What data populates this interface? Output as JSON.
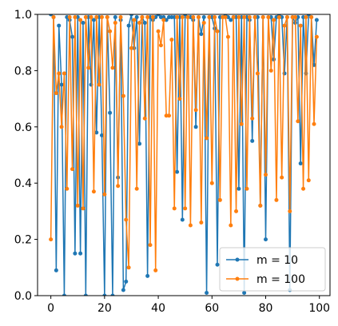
{
  "chart_data": {
    "type": "line",
    "x": [
      0,
      1,
      2,
      3,
      4,
      5,
      6,
      7,
      8,
      9,
      10,
      11,
      12,
      13,
      14,
      15,
      16,
      17,
      18,
      19,
      20,
      21,
      22,
      23,
      24,
      25,
      26,
      27,
      28,
      29,
      30,
      31,
      32,
      33,
      34,
      35,
      36,
      37,
      38,
      39,
      40,
      41,
      42,
      43,
      44,
      45,
      46,
      47,
      48,
      49,
      50,
      51,
      52,
      53,
      54,
      55,
      56,
      57,
      58,
      59,
      60,
      61,
      62,
      63,
      64,
      65,
      66,
      67,
      68,
      69,
      70,
      71,
      72,
      73,
      74,
      75,
      76,
      77,
      78,
      79,
      80,
      81,
      82,
      83,
      84,
      85,
      86,
      87,
      88,
      89,
      90,
      91,
      92,
      93,
      94,
      95,
      96,
      97,
      98,
      99
    ],
    "series": [
      {
        "name": "m = 10",
        "color": "#1f77b4",
        "values": [
          1.0,
          0.99,
          0.09,
          0.96,
          0.75,
          0.0,
          0.99,
          0.98,
          0.92,
          0.15,
          0.99,
          0.15,
          0.97,
          0.0,
          0.99,
          0.75,
          0.98,
          0.58,
          0.99,
          0.57,
          0.0,
          0.99,
          0.65,
          0.0,
          0.99,
          0.42,
          0.98,
          0.02,
          0.05,
          0.96,
          1.0,
          0.88,
          0.99,
          0.54,
          0.99,
          0.97,
          0.07,
          0.99,
          0.98,
          0.99,
          1.0,
          0.99,
          0.99,
          0.98,
          0.99,
          0.99,
          0.99,
          0.44,
          0.99,
          0.27,
          1.0,
          0.99,
          0.99,
          0.98,
          0.6,
          0.99,
          0.93,
          0.99,
          0.01,
          0.99,
          0.99,
          0.95,
          0.11,
          0.99,
          0.99,
          1.0,
          0.99,
          0.98,
          0.99,
          0.99,
          0.38,
          0.99,
          0.01,
          0.99,
          0.98,
          0.55,
          0.99,
          0.99,
          0.32,
          0.99,
          0.2,
          0.99,
          0.99,
          0.84,
          0.99,
          1.0,
          0.99,
          0.79,
          0.99,
          0.02,
          0.99,
          0.97,
          0.99,
          0.47,
          0.99,
          0.79,
          1.0,
          0.99,
          0.82,
          0.98
        ]
      },
      {
        "name": "m = 100",
        "color": "#ff7f0e",
        "values": [
          0.2,
          0.99,
          0.72,
          0.79,
          0.6,
          0.79,
          0.38,
          0.99,
          0.45,
          0.99,
          0.32,
          0.98,
          0.31,
          0.99,
          0.81,
          0.99,
          0.37,
          0.99,
          0.75,
          0.99,
          0.36,
          0.99,
          0.94,
          0.81,
          0.97,
          0.39,
          0.99,
          0.71,
          0.27,
          0.1,
          0.88,
          0.98,
          0.38,
          0.97,
          0.99,
          0.63,
          0.99,
          0.18,
          0.99,
          0.09,
          0.94,
          0.89,
          0.98,
          0.64,
          0.64,
          0.91,
          0.31,
          0.99,
          0.7,
          0.99,
          0.31,
          0.99,
          0.25,
          0.99,
          0.66,
          0.99,
          0.26,
          0.97,
          0.56,
          0.99,
          0.4,
          0.99,
          0.94,
          0.34,
          0.99,
          0.99,
          0.92,
          0.25,
          0.99,
          0.3,
          0.99,
          0.61,
          0.99,
          0.38,
          0.99,
          0.63,
          0.99,
          0.79,
          0.32,
          0.99,
          0.43,
          0.99,
          0.8,
          0.98,
          0.34,
          0.99,
          0.42,
          0.96,
          0.99,
          0.3,
          0.99,
          0.99,
          0.62,
          0.96,
          0.38,
          0.99,
          0.41,
          0.99,
          0.61,
          0.92
        ]
      }
    ],
    "xlim": [
      -4.95,
      103.95
    ],
    "xticks": [
      0,
      20,
      40,
      60,
      80,
      100
    ],
    "ylim": [
      0,
      1
    ],
    "yticks": [
      {
        "value": 0,
        "label": "0.0"
      },
      0.2,
      0.4,
      0.6,
      0.8,
      {
        "value": 1,
        "label": "1.0"
      }
    ],
    "legend": "lower right",
    "grid": false
  }
}
